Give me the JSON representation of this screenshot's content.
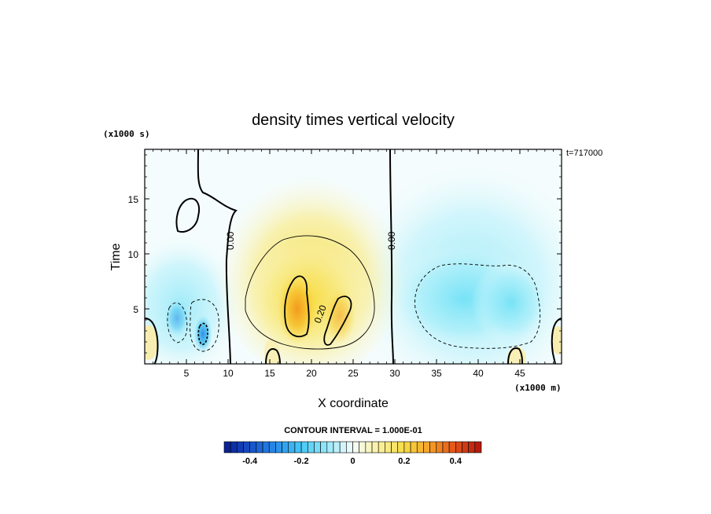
{
  "chart_data": {
    "type": "heatmap",
    "title": "density times vertical velocity",
    "xlabel": "X coordinate",
    "ylabel": "Time",
    "x_unit": "(x1000 m)",
    "y_unit": "(x1000 s)",
    "time_stamp": "t=717000",
    "xlim": [
      0,
      50
    ],
    "ylim": [
      0,
      19.5
    ],
    "x_ticks": [
      5,
      10,
      15,
      20,
      25,
      30,
      35,
      40,
      45
    ],
    "y_ticks": [
      5,
      10,
      15
    ],
    "contour_labels": [
      "0.00",
      "0.00",
      "0.20"
    ],
    "contour_interval_text": "CONTOUR INTERVAL = 1.000E-01",
    "colorbar": {
      "range": [
        -0.5,
        0.5
      ],
      "tick_values": [
        -0.4,
        -0.2,
        0,
        0.2,
        0.4
      ],
      "tick_labels": [
        "-0.4",
        "-0.2",
        "0",
        "0.2",
        "0.4"
      ]
    },
    "features": [
      {
        "x": 18,
        "y": 5.5,
        "value": 0.35
      },
      {
        "x": 23,
        "y": 4.5,
        "value": 0.22
      },
      {
        "x": 20,
        "y": 8,
        "value": 0.12
      },
      {
        "x": 37,
        "y": 6,
        "value": -0.17
      },
      {
        "x": 43,
        "y": 5,
        "value": -0.13
      },
      {
        "x": 7,
        "y": 3,
        "value": -0.28
      },
      {
        "x": 4,
        "y": 4,
        "value": -0.15
      },
      {
        "x": 5.5,
        "y": 14.5,
        "value": 0.03
      }
    ]
  },
  "colors": {
    "negative_strong": "#0a1a8c",
    "negative_mid": "#3fb8f0",
    "neutral": "#f4fcfd",
    "positive_mid": "#f7df4a",
    "positive_strong": "#c81e10"
  }
}
